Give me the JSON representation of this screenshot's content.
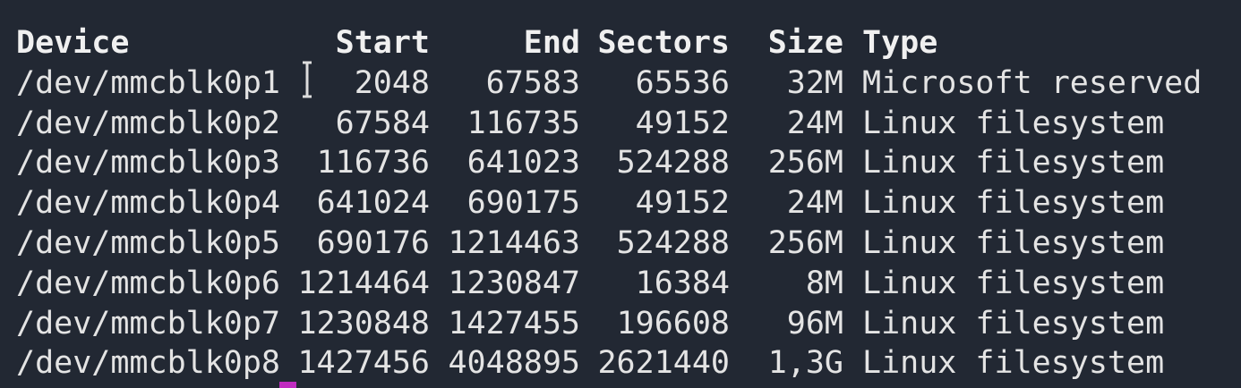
{
  "table": {
    "header": [
      "Device",
      "Start",
      "End",
      "Sectors",
      "Size",
      "Type"
    ],
    "rows": [
      [
        "/dev/mmcblk0p1",
        "2048",
        "67583",
        "65536",
        "32M",
        "Microsoft reserved"
      ],
      [
        "/dev/mmcblk0p2",
        "67584",
        "116735",
        "49152",
        "24M",
        "Linux filesystem"
      ],
      [
        "/dev/mmcblk0p3",
        "116736",
        "641023",
        "524288",
        "256M",
        "Linux filesystem"
      ],
      [
        "/dev/mmcblk0p4",
        "641024",
        "690175",
        "49152",
        "24M",
        "Linux filesystem"
      ],
      [
        "/dev/mmcblk0p5",
        "690176",
        "1214463",
        "524288",
        "256M",
        "Linux filesystem"
      ],
      [
        "/dev/mmcblk0p6",
        "1214464",
        "1230847",
        "16384",
        "8M",
        "Linux filesystem"
      ],
      [
        "/dev/mmcblk0p7",
        "1230848",
        "1427455",
        "196608",
        "96M",
        "Linux filesystem"
      ],
      [
        "/dev/mmcblk0p8",
        "1427456",
        "4048895",
        "2621440",
        "1,3G",
        "Linux filesystem"
      ]
    ]
  }
}
